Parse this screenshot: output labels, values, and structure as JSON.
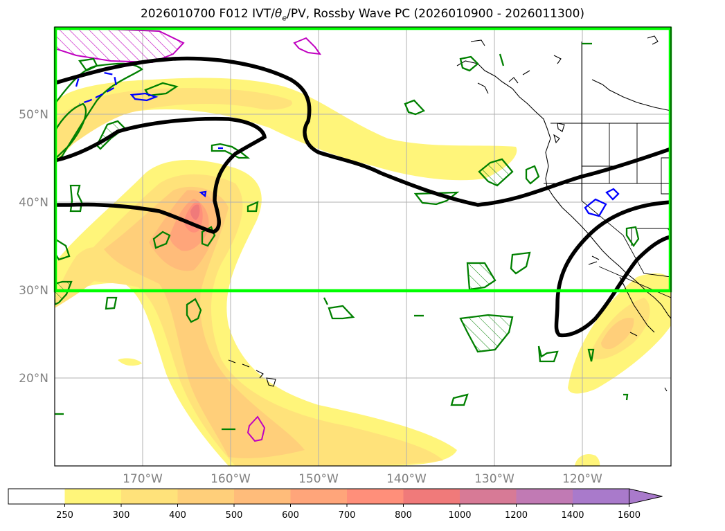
{
  "title": {
    "prefix": "2026010700 F012 IVT/",
    "theta": "θ",
    "theta_sub": "e",
    "suffix": "/PV, Rossby Wave PC (2026010900 - 2026011300)"
  },
  "lat_labels": [
    "50°N",
    "40°N",
    "30°N",
    "20°N"
  ],
  "lon_labels": [
    "170°W",
    "160°W",
    "150°W",
    "140°W",
    "130°W",
    "120°W"
  ],
  "colorbar": {
    "ticks": [
      "250",
      "300",
      "400",
      "500",
      "600",
      "700",
      "800",
      "1000",
      "1200",
      "1400",
      "1600"
    ],
    "colors": [
      "#ffffff",
      "#fff57a",
      "#ffe27a",
      "#ffcf7a",
      "#ffbc7a",
      "#ffa57a",
      "#ff8f7a",
      "#f07a7a",
      "#d77a96",
      "#c17ab4",
      "#a97acb"
    ]
  },
  "colors": {
    "box": "#00ff00",
    "pv_contour": "#000000",
    "green_contour": "#008000",
    "blue_contour": "#0000ff",
    "magenta_contour": "#c000c0"
  }
}
